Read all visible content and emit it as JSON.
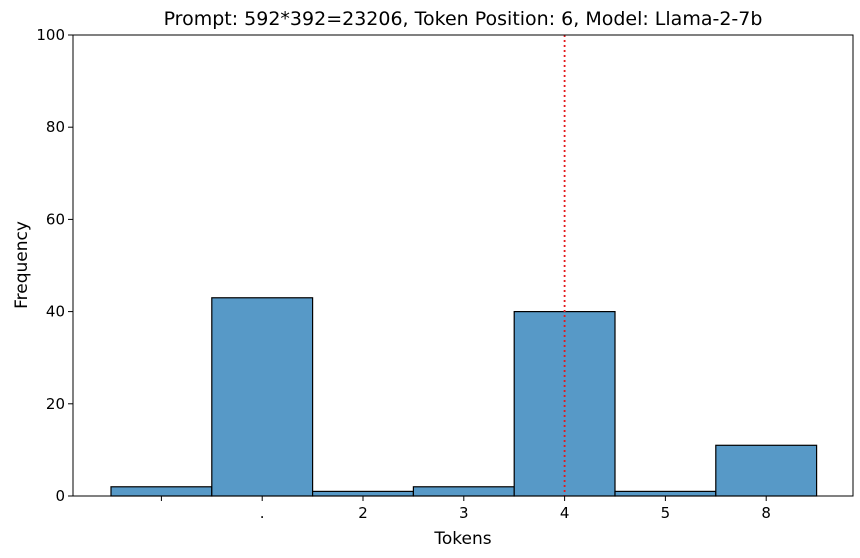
{
  "chart_data": {
    "type": "bar",
    "title": "Prompt: 592*392=23206, Token Position: 6, Model: Llama-2-7b",
    "xlabel": "Tokens",
    "ylabel": "Frequency",
    "ylim": [
      0,
      100
    ],
    "yticks": [
      0,
      20,
      40,
      60,
      80,
      100
    ],
    "categories": [
      "",
      ".",
      "2",
      "3",
      "4",
      "5",
      "8"
    ],
    "values": [
      2,
      43,
      1,
      2,
      40,
      1,
      11
    ],
    "reference_line": {
      "category": "4",
      "color": "#e31a1c",
      "style": "dotted"
    },
    "bar_color": "#5799c7",
    "grid": false
  }
}
